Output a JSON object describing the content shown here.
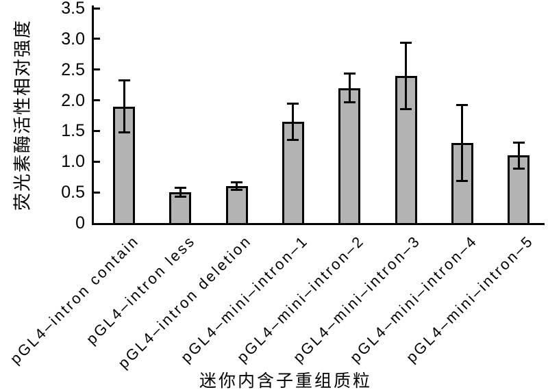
{
  "figure": {
    "background_color": "#ffffff",
    "axis_color": "#000000"
  },
  "chart_data": {
    "type": "bar",
    "title": "",
    "xlabel": "迷你内含子重组质粒",
    "ylabel": "荧光素酶活性相对强度",
    "categories": [
      "pGL4–intron contain",
      "pGL4–intron less",
      "pGL4–intron deletion",
      "pGL4–mini–intron–1",
      "pGL4–mini–intron–2",
      "pGL4–mini–intron–3",
      "pGL4–mini–intron–4",
      "pGL4–mini–intron–5"
    ],
    "values": [
      1.9,
      0.5,
      0.6,
      1.65,
      2.2,
      2.4,
      1.3,
      1.1
    ],
    "errors": [
      0.42,
      0.07,
      0.06,
      0.3,
      0.23,
      0.54,
      0.62,
      0.21
    ],
    "ylim": [
      0,
      3.5
    ],
    "yticks": [
      0,
      0.5,
      1.0,
      1.5,
      2.0,
      2.5,
      3.0,
      3.5
    ],
    "ytick_labels": [
      "0",
      "0.5",
      "1.0",
      "1.5",
      "2.0",
      "2.5",
      "3.0",
      "3.5"
    ],
    "grid": false,
    "legend": null,
    "error_bars": "symmetric, with caps",
    "tick_direction": "in",
    "bar_fill_color": "#b3b3b3",
    "bar_border_color": "#000000",
    "error_bar_color": "#000000"
  }
}
